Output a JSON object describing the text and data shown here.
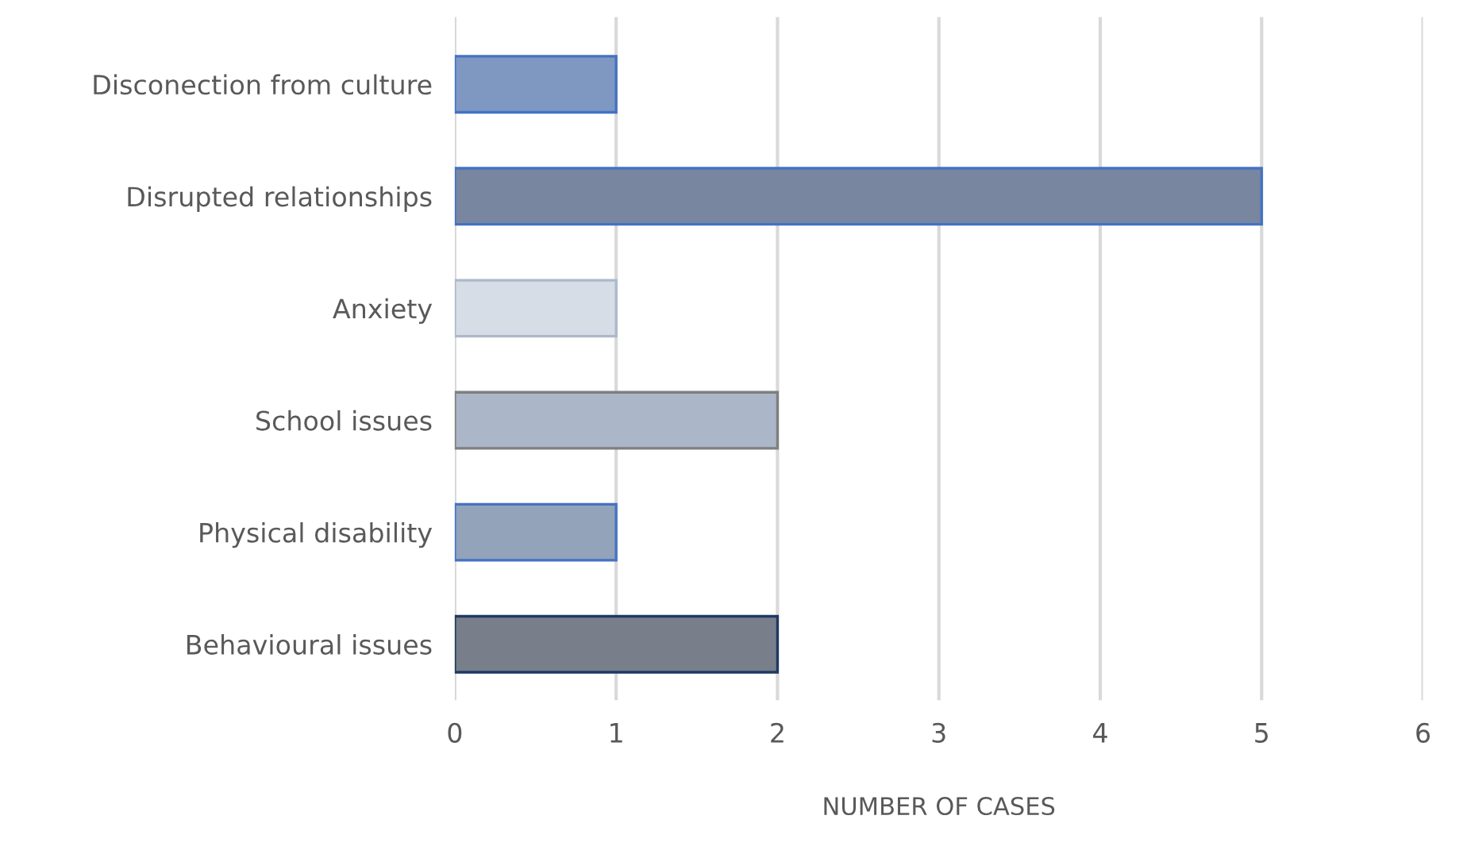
{
  "chart_data": {
    "type": "bar",
    "orientation": "horizontal",
    "xlabel": "NUMBER OF CASES",
    "categories": [
      "Disconection from culture",
      "Disrupted relationships",
      "Anxiety",
      "School issues",
      "Physical disability",
      "Behavioural issues"
    ],
    "values": [
      1,
      5,
      1,
      2,
      1,
      2
    ],
    "colors": [
      "#7f98c2",
      "#7886a0",
      "#d6dde6",
      "#abb6c8",
      "#92a3ba",
      "#787f8a"
    ],
    "xlim": [
      0,
      6
    ],
    "xticks": [
      0,
      1,
      2,
      3,
      4,
      5,
      6
    ],
    "grid": "x"
  }
}
